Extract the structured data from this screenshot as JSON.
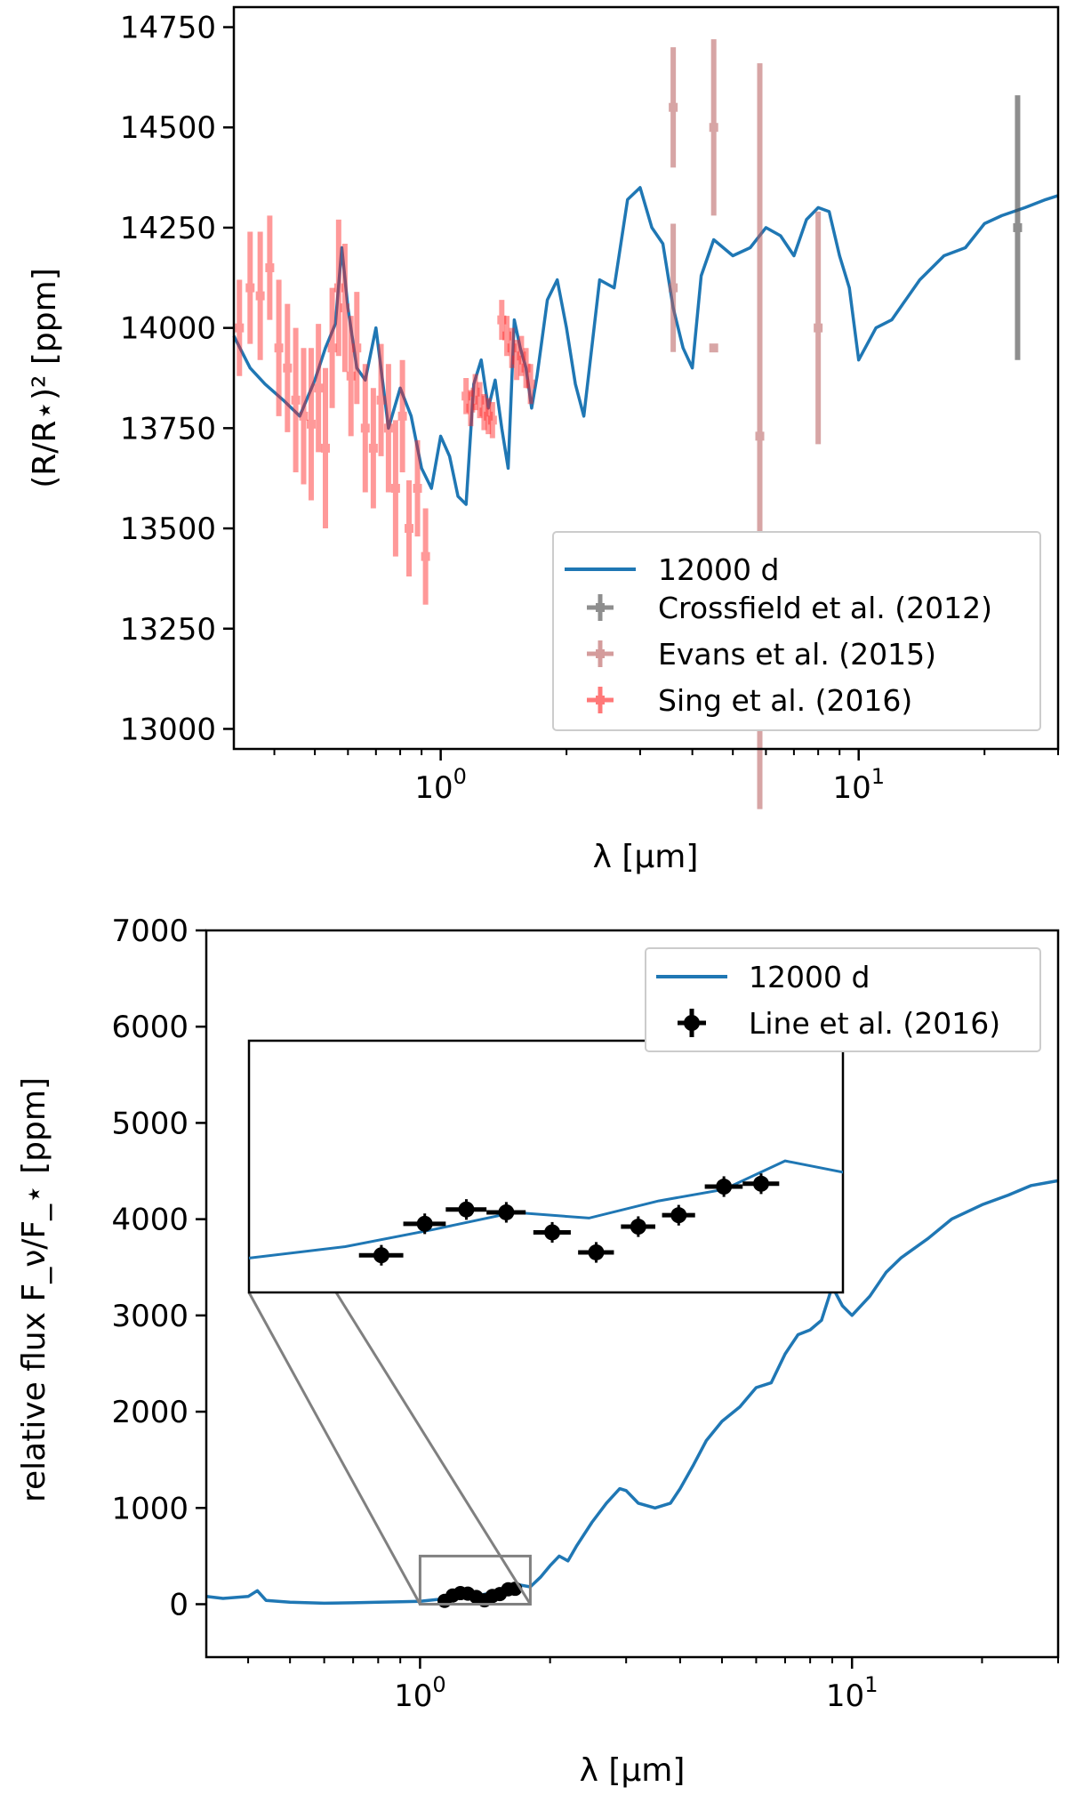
{
  "chart_data": [
    {
      "id": "transmission",
      "type": "line",
      "xscale": "log",
      "xlabel": "λ [μm]",
      "ylabel": "(R/R⋆)² [ppm]",
      "xlim": [
        0.32,
        30
      ],
      "ylim": [
        12950,
        14800
      ],
      "yticks": [
        13000,
        13250,
        13500,
        13750,
        14000,
        14250,
        14500,
        14750
      ],
      "ytick_labels": [
        "13000",
        "13250",
        "13500",
        "13750",
        "14000",
        "14250",
        "14500",
        "14750"
      ],
      "xticks_major": [
        {
          "value": 1,
          "base": "10",
          "exp": "0"
        },
        {
          "value": 10,
          "base": "10",
          "exp": "1"
        }
      ],
      "legend_position": "lower-right",
      "series": [
        {
          "name": "12000 d",
          "kind": "line",
          "color": "#1f77b4",
          "x": [
            0.32,
            0.35,
            0.38,
            0.42,
            0.46,
            0.5,
            0.53,
            0.56,
            0.58,
            0.6,
            0.63,
            0.66,
            0.7,
            0.75,
            0.8,
            0.85,
            0.9,
            0.95,
            1.0,
            1.05,
            1.1,
            1.15,
            1.2,
            1.25,
            1.3,
            1.35,
            1.4,
            1.45,
            1.5,
            1.55,
            1.6,
            1.65,
            1.7,
            1.8,
            1.9,
            2.0,
            2.1,
            2.2,
            2.4,
            2.6,
            2.8,
            3.0,
            3.2,
            3.4,
            3.6,
            3.8,
            4.0,
            4.2,
            4.5,
            5.0,
            5.5,
            6.0,
            6.5,
            7.0,
            7.5,
            8.0,
            8.5,
            9.0,
            9.5,
            10.0,
            11.0,
            12.0,
            14.0,
            16.0,
            18.0,
            20.0,
            22.0,
            25.0,
            28.0,
            30.0
          ],
          "y": [
            13980,
            13900,
            13860,
            13820,
            13780,
            13870,
            13950,
            14010,
            14200,
            14050,
            13900,
            13870,
            14000,
            13750,
            13850,
            13780,
            13650,
            13600,
            13730,
            13680,
            13580,
            13560,
            13860,
            13920,
            13800,
            13870,
            13750,
            13650,
            14020,
            13950,
            13900,
            13800,
            13880,
            14070,
            14120,
            14000,
            13860,
            13780,
            14120,
            14100,
            14320,
            14350,
            14250,
            14210,
            14050,
            13950,
            13900,
            14130,
            14220,
            14180,
            14200,
            14250,
            14230,
            14180,
            14270,
            14300,
            14290,
            14180,
            14100,
            13920,
            14000,
            14020,
            14120,
            14180,
            14200,
            14260,
            14280,
            14300,
            14320,
            14330
          ]
        },
        {
          "name": "Crossfield et al. (2012)",
          "kind": "errorbar",
          "color": "#444444",
          "points": [
            {
              "x": 24.0,
              "y": 14250,
              "yerr": 330
            }
          ]
        },
        {
          "name": "Evans et al. (2015)",
          "kind": "errorbar",
          "color": "#b85c5c",
          "points": [
            {
              "x": 3.6,
              "y": 14550,
              "yerr": 150
            },
            {
              "x": 3.6,
              "y": 14100,
              "yerr": 160
            },
            {
              "x": 4.5,
              "y": 14500,
              "yerr": 220
            },
            {
              "x": 4.5,
              "y": 13950,
              "yerr": 0
            },
            {
              "x": 5.8,
              "y": 13730,
              "yerr": 930
            },
            {
              "x": 8.0,
              "y": 14000,
              "yerr": 290
            }
          ]
        },
        {
          "name": "Sing et al. (2016)",
          "kind": "errorbar",
          "color": "#ff2020",
          "points": [
            {
              "x": 0.33,
              "y": 14000,
              "yerr": 120
            },
            {
              "x": 0.35,
              "y": 14100,
              "yerr": 140
            },
            {
              "x": 0.37,
              "y": 14080,
              "yerr": 160
            },
            {
              "x": 0.39,
              "y": 14150,
              "yerr": 130
            },
            {
              "x": 0.41,
              "y": 13950,
              "yerr": 170
            },
            {
              "x": 0.43,
              "y": 13900,
              "yerr": 160
            },
            {
              "x": 0.45,
              "y": 13820,
              "yerr": 180
            },
            {
              "x": 0.47,
              "y": 13780,
              "yerr": 170
            },
            {
              "x": 0.49,
              "y": 13760,
              "yerr": 190
            },
            {
              "x": 0.51,
              "y": 13850,
              "yerr": 160
            },
            {
              "x": 0.53,
              "y": 13700,
              "yerr": 200
            },
            {
              "x": 0.55,
              "y": 13950,
              "yerr": 150
            },
            {
              "x": 0.57,
              "y": 14100,
              "yerr": 170
            },
            {
              "x": 0.59,
              "y": 14050,
              "yerr": 160
            },
            {
              "x": 0.61,
              "y": 13880,
              "yerr": 150
            },
            {
              "x": 0.63,
              "y": 13950,
              "yerr": 140
            },
            {
              "x": 0.66,
              "y": 13750,
              "yerr": 160
            },
            {
              "x": 0.69,
              "y": 13700,
              "yerr": 150
            },
            {
              "x": 0.72,
              "y": 13820,
              "yerr": 140
            },
            {
              "x": 0.75,
              "y": 13750,
              "yerr": 160
            },
            {
              "x": 0.78,
              "y": 13600,
              "yerr": 170
            },
            {
              "x": 0.81,
              "y": 13780,
              "yerr": 140
            },
            {
              "x": 0.84,
              "y": 13500,
              "yerr": 120
            },
            {
              "x": 0.88,
              "y": 13600,
              "yerr": 120
            },
            {
              "x": 0.92,
              "y": 13430,
              "yerr": 120
            },
            {
              "x": 1.15,
              "y": 13830,
              "yerr": 45
            },
            {
              "x": 1.18,
              "y": 13800,
              "yerr": 45
            },
            {
              "x": 1.21,
              "y": 13840,
              "yerr": 45
            },
            {
              "x": 1.24,
              "y": 13820,
              "yerr": 45
            },
            {
              "x": 1.27,
              "y": 13790,
              "yerr": 45
            },
            {
              "x": 1.3,
              "y": 13780,
              "yerr": 45
            },
            {
              "x": 1.33,
              "y": 13770,
              "yerr": 45
            },
            {
              "x": 1.4,
              "y": 14020,
              "yerr": 50
            },
            {
              "x": 1.44,
              "y": 13980,
              "yerr": 50
            },
            {
              "x": 1.48,
              "y": 13950,
              "yerr": 50
            },
            {
              "x": 1.52,
              "y": 13920,
              "yerr": 50
            },
            {
              "x": 1.56,
              "y": 13930,
              "yerr": 50
            },
            {
              "x": 1.6,
              "y": 13900,
              "yerr": 50
            },
            {
              "x": 1.64,
              "y": 13860,
              "yerr": 50
            }
          ]
        }
      ]
    },
    {
      "id": "emission",
      "type": "line",
      "xscale": "log",
      "xlabel": "λ [μm]",
      "ylabel": "relative flux F_ν/F_⋆ [ppm]",
      "xlim": [
        0.32,
        30
      ],
      "ylim": [
        -550,
        7000
      ],
      "yticks": [
        0,
        1000,
        2000,
        3000,
        4000,
        5000,
        6000,
        7000
      ],
      "ytick_labels": [
        "0",
        "1000",
        "2000",
        "3000",
        "4000",
        "5000",
        "6000",
        "7000"
      ],
      "xticks_major": [
        {
          "value": 1,
          "base": "10",
          "exp": "0"
        },
        {
          "value": 10,
          "base": "10",
          "exp": "1"
        }
      ],
      "legend_position": "top-right",
      "inset_region": {
        "xlim": [
          1.0,
          1.8
        ],
        "ylim": [
          0,
          500
        ]
      },
      "series": [
        {
          "name": "12000 d",
          "kind": "line",
          "color": "#1f77b4",
          "x": [
            0.32,
            0.35,
            0.4,
            0.42,
            0.44,
            0.5,
            0.6,
            0.7,
            0.8,
            0.9,
            1.0,
            1.1,
            1.2,
            1.3,
            1.4,
            1.5,
            1.6,
            1.7,
            1.8,
            1.9,
            2.0,
            2.1,
            2.2,
            2.3,
            2.5,
            2.7,
            2.9,
            3.0,
            3.2,
            3.5,
            3.8,
            4.0,
            4.3,
            4.6,
            5.0,
            5.5,
            6.0,
            6.5,
            7.0,
            7.5,
            8.0,
            8.5,
            9.0,
            9.5,
            10.0,
            11.0,
            12.0,
            13.0,
            15.0,
            17.0,
            20.0,
            23.0,
            26.0,
            30.0
          ],
          "y": [
            80,
            60,
            80,
            140,
            40,
            20,
            10,
            15,
            20,
            25,
            30,
            50,
            80,
            110,
            100,
            130,
            150,
            200,
            180,
            280,
            400,
            500,
            450,
            600,
            850,
            1050,
            1200,
            1180,
            1050,
            1000,
            1050,
            1200,
            1450,
            1700,
            1900,
            2050,
            2250,
            2300,
            2600,
            2800,
            2850,
            2950,
            3300,
            3100,
            3000,
            3200,
            3450,
            3600,
            3800,
            4000,
            4150,
            4250,
            4350,
            4400
          ]
        },
        {
          "name": "Line et al. (2016)",
          "kind": "errorbar",
          "color": "#000000",
          "points": [
            {
              "x": 1.14,
              "y": 35,
              "xerr": 0.025,
              "yerr": 18
            },
            {
              "x": 1.19,
              "y": 90,
              "xerr": 0.025,
              "yerr": 18
            },
            {
              "x": 1.24,
              "y": 115,
              "xerr": 0.025,
              "yerr": 18
            },
            {
              "x": 1.29,
              "y": 110,
              "xerr": 0.025,
              "yerr": 18
            },
            {
              "x": 1.35,
              "y": 75,
              "xerr": 0.025,
              "yerr": 18
            },
            {
              "x": 1.41,
              "y": 40,
              "xerr": 0.025,
              "yerr": 18
            },
            {
              "x": 1.47,
              "y": 85,
              "xerr": 0.025,
              "yerr": 18
            },
            {
              "x": 1.53,
              "y": 105,
              "xerr": 0.025,
              "yerr": 18
            },
            {
              "x": 1.6,
              "y": 155,
              "xerr": 0.03,
              "yerr": 18
            },
            {
              "x": 1.66,
              "y": 160,
              "xerr": 0.03,
              "yerr": 18
            }
          ]
        }
      ]
    }
  ]
}
